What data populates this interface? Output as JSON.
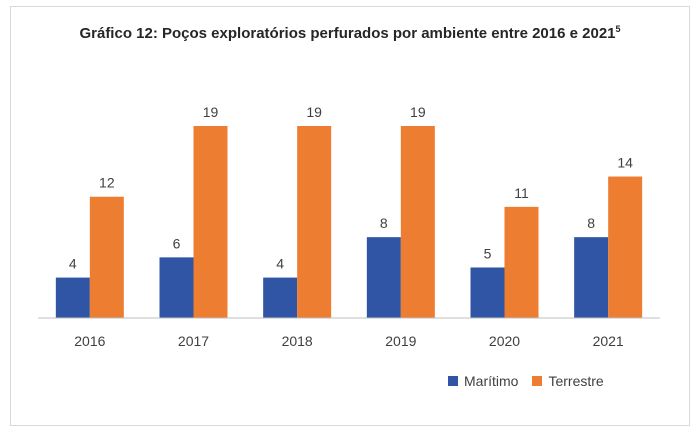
{
  "title": "Gráfico 12: Poços exploratórios perfurados por ambiente entre 2016 e 2021",
  "title_superscript": "5",
  "colors": {
    "maritimo": "#2F55A4",
    "terrestre": "#ED7D31",
    "text": "#404040",
    "axis": "#bfbfbf"
  },
  "chart_data": {
    "type": "bar",
    "title": "Gráfico 12: Poços exploratórios perfurados por ambiente entre 2016 e 2021",
    "categories": [
      "2016",
      "2017",
      "2018",
      "2019",
      "2020",
      "2021"
    ],
    "series": [
      {
        "name": "Marítimo",
        "values": [
          4,
          6,
          4,
          8,
          5,
          8
        ]
      },
      {
        "name": "Terrestre",
        "values": [
          12,
          19,
          19,
          19,
          11,
          14
        ]
      }
    ],
    "ylim": [
      0,
      19
    ],
    "grid": false,
    "data_labels": true,
    "legend_position": "bottom-right"
  },
  "legend": {
    "maritimo": "Marítimo",
    "terrestre": "Terrestre"
  }
}
